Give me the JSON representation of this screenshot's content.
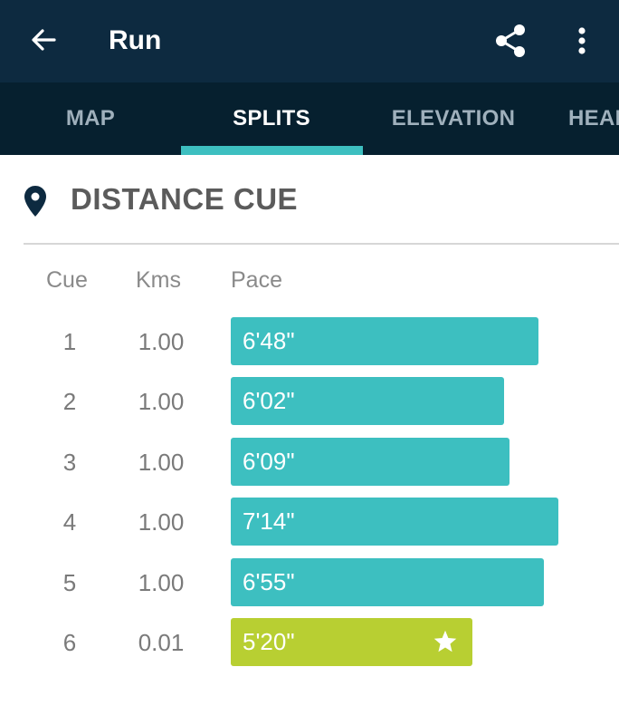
{
  "appbar": {
    "title": "Run",
    "icons": [
      "arrow-back-icon",
      "share-icon",
      "more-vert-icon"
    ]
  },
  "tabs": [
    {
      "label": "MAP",
      "active": false
    },
    {
      "label": "SPLITS",
      "active": true
    },
    {
      "label": "ELEVATION",
      "active": false
    },
    {
      "label": "HEAR",
      "active": false
    }
  ],
  "section": {
    "title": "DISTANCE CUE",
    "icon": "location-pin-icon"
  },
  "table": {
    "headers": {
      "cue": "Cue",
      "kms": "Kms",
      "pace": "Pace"
    },
    "rows": [
      {
        "cue": "1",
        "kms": "1.00",
        "pace": "6'48\"",
        "pace_seconds": 408,
        "best": false
      },
      {
        "cue": "2",
        "kms": "1.00",
        "pace": "6'02\"",
        "pace_seconds": 362,
        "best": false
      },
      {
        "cue": "3",
        "kms": "1.00",
        "pace": "6'09\"",
        "pace_seconds": 369,
        "best": false
      },
      {
        "cue": "4",
        "kms": "1.00",
        "pace": "7'14\"",
        "pace_seconds": 434,
        "best": false
      },
      {
        "cue": "5",
        "kms": "1.00",
        "pace": "6'55\"",
        "pace_seconds": 415,
        "best": false
      },
      {
        "cue": "6",
        "kms": "0.01",
        "pace": "5'20\"",
        "pace_seconds": 320,
        "best": true
      }
    ]
  },
  "colors": {
    "appbar": "#0d2a40",
    "tabbar": "#06202f",
    "accent": "#3dbfc0",
    "best": "#b8cf32"
  }
}
